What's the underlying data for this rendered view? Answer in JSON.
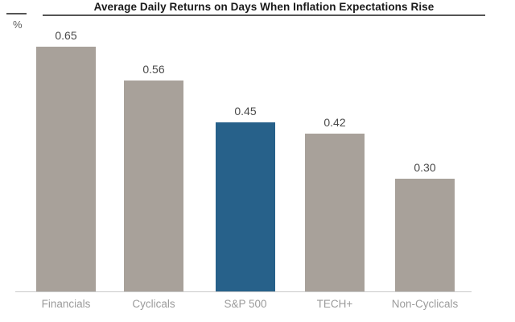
{
  "header": {
    "title": "Average Daily Returns on Days When Inflation Expectations Rise",
    "y_axis_unit": "%"
  },
  "chart_data": {
    "type": "bar",
    "title": "Average Daily Returns on Days When Inflation Expectations Rise",
    "categories": [
      "Financials",
      "Cyclicals",
      "S&P 500",
      "TECH+",
      "Non-Cyclicals"
    ],
    "values": [
      0.65,
      0.56,
      0.45,
      0.42,
      0.3
    ],
    "value_labels": [
      "0.65",
      "0.56",
      "0.45",
      "0.42",
      "0.30"
    ],
    "xlabel": "",
    "ylabel": "%",
    "ylim": [
      0,
      0.71
    ],
    "grid": false,
    "legend": "none",
    "highlight_index": 2,
    "highlighted_category": "S&P 500",
    "colors": {
      "bar_default": "#a8a19a",
      "bar_highlight": "#27618a",
      "axis_line": "#c9c9c9",
      "title_rule": "#555555",
      "value_label": "#4a4a4a",
      "category_label": "#9b9b9b",
      "title_text": "#1a1a1a"
    }
  }
}
